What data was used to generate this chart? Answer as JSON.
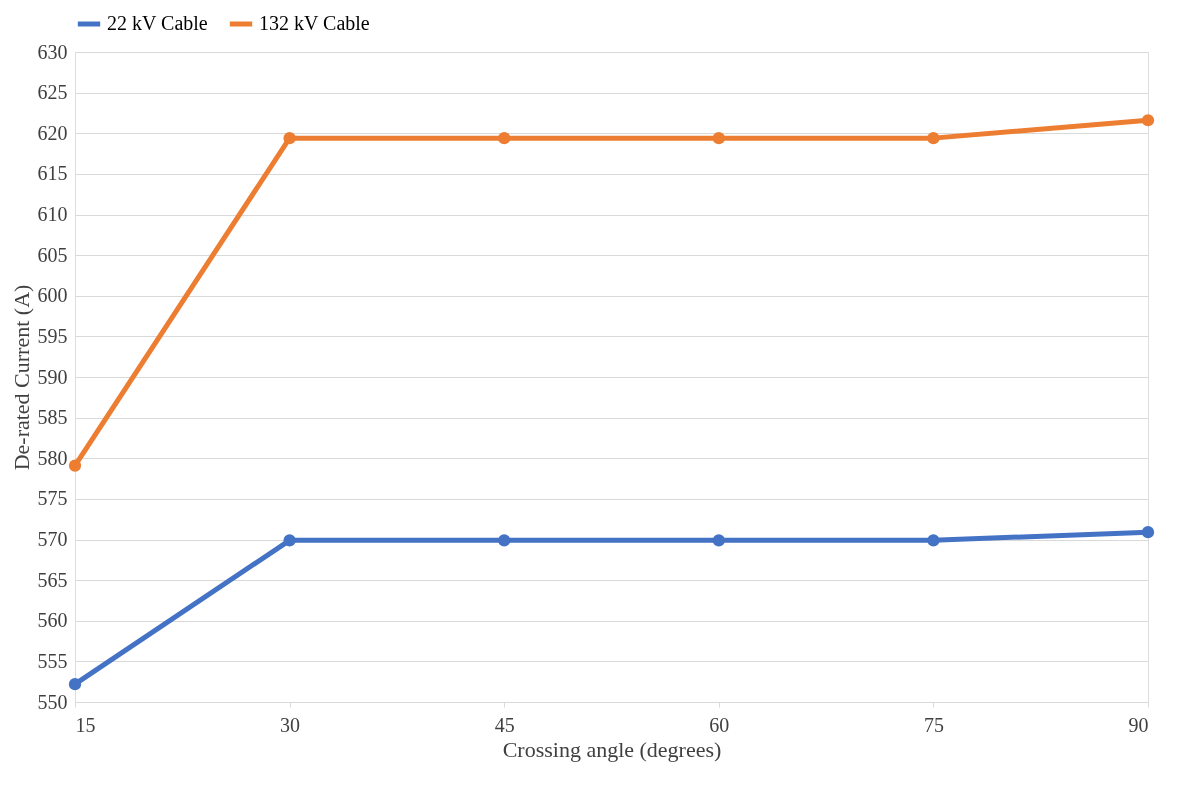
{
  "chart_data": {
    "type": "line",
    "xlabel": "Crossing angle (degrees)",
    "ylabel": "De-rated Current (A)",
    "x": [
      15,
      30,
      45,
      60,
      75,
      90
    ],
    "series": [
      {
        "name": "22 kV Cable",
        "color": "#4472c4",
        "values": [
          552.2,
          569.9,
          569.9,
          569.9,
          569.9,
          570.9
        ]
      },
      {
        "name": "132 kV Cable",
        "color": "#ed7d31",
        "values": [
          579.1,
          619.4,
          619.4,
          619.4,
          619.4,
          621.6
        ]
      }
    ],
    "xlim": [
      15,
      90
    ],
    "xticks": [
      15,
      30,
      45,
      60,
      75,
      90
    ],
    "ylim": [
      550,
      630
    ],
    "yticks": [
      550,
      555,
      560,
      565,
      570,
      575,
      580,
      585,
      590,
      595,
      600,
      605,
      610,
      615,
      620,
      625,
      630
    ],
    "grid": "y",
    "legend": "top",
    "marker": "circle",
    "line_style": "solid"
  }
}
